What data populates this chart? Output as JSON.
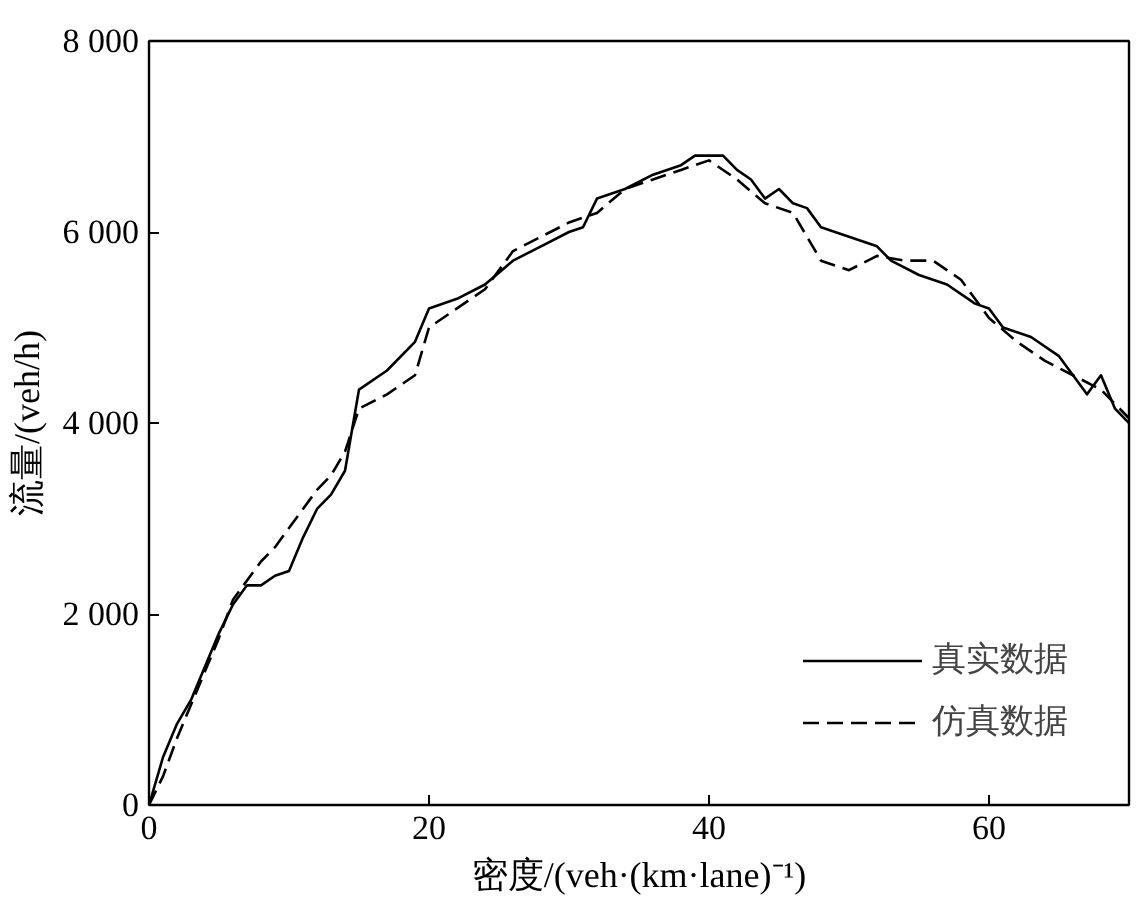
{
  "chart_data": {
    "type": "line",
    "xlabel": "密度/(veh·(km·lane)⁻¹)",
    "ylabel": "流量/(veh/h)",
    "xlim": [
      0,
      70
    ],
    "ylim": [
      0,
      8000
    ],
    "xticks": [
      0,
      20,
      40,
      60
    ],
    "yticks": [
      {
        "value": 0,
        "label": "0"
      },
      {
        "value": 2000,
        "label": "2 000"
      },
      {
        "value": 4000,
        "label": "4 000"
      },
      {
        "value": 6000,
        "label": "6 000"
      },
      {
        "value": 8000,
        "label": "8 000"
      }
    ],
    "grid": false,
    "legend": "bottom right",
    "series": [
      {
        "name": "真实数据",
        "color": "#000000",
        "line_style": "solid",
        "x": [
          0,
          1,
          2,
          3,
          4,
          5,
          6,
          7,
          8,
          9,
          10,
          11,
          12,
          13,
          14,
          15,
          17,
          19,
          20,
          22,
          24,
          26,
          28,
          30,
          31,
          32,
          34,
          36,
          38,
          39,
          41,
          42,
          43,
          44,
          45,
          46,
          47,
          48,
          50,
          52,
          53,
          55,
          57,
          59,
          60,
          61,
          63,
          65,
          66,
          67,
          68,
          69,
          70
        ],
        "values": [
          0,
          500,
          850,
          1100,
          1450,
          1800,
          2100,
          2300,
          2300,
          2400,
          2450,
          2800,
          3100,
          3250,
          3500,
          4350,
          4550,
          4850,
          5200,
          5300,
          5450,
          5700,
          5850,
          6000,
          6050,
          6350,
          6450,
          6600,
          6700,
          6800,
          6800,
          6650,
          6550,
          6350,
          6450,
          6300,
          6250,
          6050,
          5950,
          5850,
          5700,
          5550,
          5450,
          5250,
          5200,
          5000,
          4900,
          4700,
          4500,
          4300,
          4500,
          4150,
          4000
        ]
      },
      {
        "name": "仿真数据",
        "color": "#000000",
        "line_style": "dashed",
        "x": [
          0,
          1,
          2,
          3,
          4,
          5,
          6,
          7,
          8,
          9,
          10,
          11,
          12,
          13,
          14,
          15,
          17,
          19,
          20,
          22,
          24,
          26,
          28,
          30,
          32,
          34,
          36,
          38,
          40,
          42,
          44,
          46,
          48,
          50,
          52,
          54,
          56,
          58,
          60,
          62,
          64,
          66,
          68,
          70
        ],
        "values": [
          0,
          300,
          700,
          1050,
          1400,
          1750,
          2150,
          2350,
          2550,
          2700,
          2900,
          3100,
          3300,
          3450,
          3700,
          4150,
          4300,
          4500,
          5000,
          5200,
          5400,
          5800,
          5950,
          6100,
          6200,
          6450,
          6550,
          6650,
          6750,
          6550,
          6300,
          6200,
          5700,
          5600,
          5750,
          5700,
          5700,
          5500,
          5100,
          4850,
          4650,
          4500,
          4350,
          4050
        ]
      }
    ]
  }
}
